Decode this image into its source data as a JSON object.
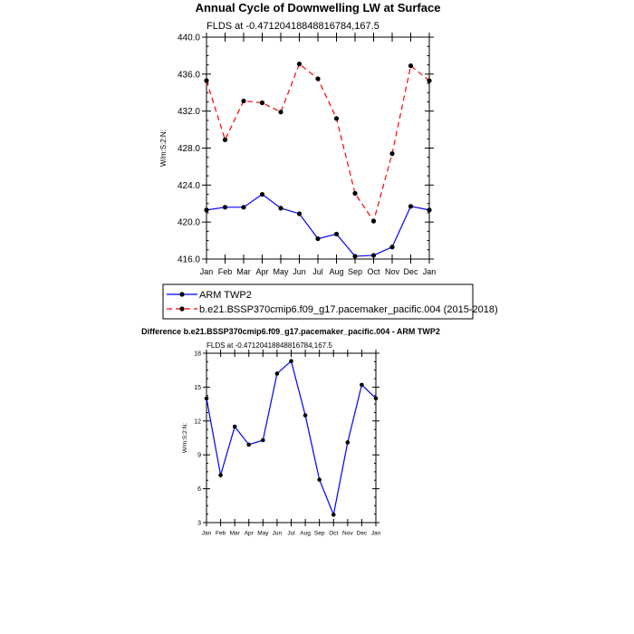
{
  "chart_data": [
    {
      "type": "line",
      "title": "Annual Cycle of Downwelling LW at Surface",
      "subtitle": "FLDS at -0.47120418848816784,167.5",
      "ylabel": "W/m:S:2:N:",
      "ylim": [
        416.0,
        440.0
      ],
      "yticks": [
        416.0,
        420.0,
        424.0,
        428.0,
        432.0,
        436.0,
        440.0
      ],
      "ytick_labels": [
        "416.0",
        "420.0",
        "424.0",
        "428.0",
        "432.0",
        "436.0",
        "440.0"
      ],
      "categories": [
        "Jan",
        "Feb",
        "Mar",
        "Apr",
        "May",
        "Jun",
        "Jul",
        "Aug",
        "Sep",
        "Oct",
        "Nov",
        "Dec",
        "Jan"
      ],
      "legend_position": "bottom",
      "series": [
        {
          "name": "ARM TWP2",
          "color": "#0000ff",
          "dash": "solid",
          "values": [
            421.3,
            421.6,
            421.6,
            423.0,
            421.5,
            420.9,
            418.2,
            418.7,
            416.3,
            416.4,
            417.3,
            421.7,
            421.3
          ]
        },
        {
          "name": "b.e21.BSSP370cmip6.f09_g17.pacemaker_pacific.004 (2015-2018)",
          "color": "#ff0000",
          "dash": "dashed",
          "values": [
            435.3,
            428.9,
            433.1,
            432.9,
            431.9,
            437.1,
            435.5,
            431.2,
            423.1,
            420.1,
            427.4,
            436.9,
            435.3
          ]
        }
      ]
    },
    {
      "type": "line",
      "title": "Difference b.e21.BSSP370cmip6.f09_g17.pacemaker_pacific.004 - ARM TWP2",
      "subtitle": "FLDS at -0.47120418848816784,167.5",
      "ylabel": "W/m:S:2:N:",
      "ylim": [
        3,
        18
      ],
      "yticks": [
        3,
        6,
        9,
        12,
        15,
        18
      ],
      "ytick_labels": [
        "3",
        "6",
        "9",
        "12",
        "15",
        "18"
      ],
      "categories": [
        "Jan",
        "Feb",
        "Mar",
        "Apr",
        "May",
        "Jun",
        "Jul",
        "Aug",
        "Sep",
        "Oct",
        "Nov",
        "Dec",
        "Jan"
      ],
      "series": [
        {
          "color": "#0000ff",
          "values": [
            14.0,
            7.2,
            11.5,
            9.9,
            10.3,
            16.2,
            17.3,
            12.5,
            6.8,
            3.7,
            10.1,
            15.2,
            14.0
          ]
        }
      ]
    }
  ]
}
